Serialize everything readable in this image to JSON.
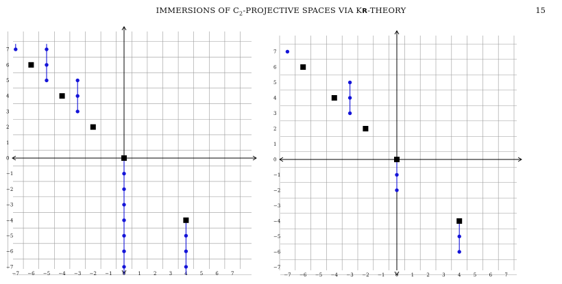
{
  "header": {
    "title_parts": [
      "IMMERSIONS OF C",
      "2",
      "-PROJECTIVE SPACES VIA K",
      "R",
      "-THEORY"
    ],
    "page_number": "15"
  },
  "chart_data": [
    {
      "type": "scatter",
      "xlim": [
        -7.5,
        7.5
      ],
      "ylim": [
        -7.5,
        7.5
      ],
      "x_ticks": [
        "−7",
        "−6",
        "−5",
        "−4",
        "−3",
        "−2",
        "−1",
        "0",
        "1",
        "2",
        "3",
        "4",
        "5",
        "6",
        "7"
      ],
      "y_ticks": [
        "7",
        "6",
        "5",
        "4",
        "3",
        "2",
        "1",
        "0",
        "−1",
        "−2",
        "−3",
        "−4",
        "−5",
        "−6",
        "−7"
      ],
      "grid": true,
      "squares": [
        [
          -6,
          6
        ],
        [
          -4,
          4
        ],
        [
          -2,
          2
        ],
        [
          0,
          0
        ],
        [
          4,
          -4
        ]
      ],
      "dots": [
        [
          -7,
          7
        ],
        [
          -5,
          7
        ],
        [
          -5,
          6
        ],
        [
          -5,
          5
        ],
        [
          -3,
          5
        ],
        [
          -3,
          4
        ],
        [
          -3,
          3
        ],
        [
          0,
          -1
        ],
        [
          0,
          -2
        ],
        [
          0,
          -3
        ],
        [
          0,
          -4
        ],
        [
          0,
          -5
        ],
        [
          0,
          -6
        ],
        [
          0,
          -7
        ],
        [
          4,
          -5
        ],
        [
          4,
          -6
        ],
        [
          4,
          -7
        ]
      ],
      "segments": [
        [
          -7,
          7.35,
          -7,
          7
        ],
        [
          -5,
          7.35,
          -5,
          5
        ],
        [
          -3,
          5,
          -3,
          3
        ],
        [
          0,
          0,
          0,
          -7.5
        ],
        [
          4,
          -4,
          4,
          -7.5
        ]
      ],
      "colors": {
        "dot": "#1414d8",
        "square": "#000000",
        "grid": "#9a9a9a"
      }
    },
    {
      "type": "scatter",
      "xlim": [
        -7.5,
        7.5
      ],
      "ylim": [
        -7.5,
        7.5
      ],
      "x_ticks": [
        "−7",
        "−6",
        "−5",
        "−4",
        "−3",
        "−2",
        "−1",
        "0",
        "1",
        "2",
        "3",
        "4",
        "5",
        "6",
        "7"
      ],
      "y_ticks": [
        "7",
        "6",
        "5",
        "4",
        "3",
        "2",
        "1",
        "0",
        "−1",
        "−2",
        "−3",
        "−4",
        "−5",
        "−6",
        "−7"
      ],
      "grid": true,
      "squares": [
        [
          -6,
          6
        ],
        [
          -4,
          4
        ],
        [
          -2,
          2
        ],
        [
          0,
          0
        ],
        [
          4,
          -4
        ]
      ],
      "dots": [
        [
          -7,
          7
        ],
        [
          -3,
          5
        ],
        [
          -3,
          4
        ],
        [
          -3,
          3
        ],
        [
          0,
          -1
        ],
        [
          0,
          -2
        ],
        [
          4,
          -5
        ],
        [
          4,
          -6
        ]
      ],
      "segments": [
        [
          -3,
          5,
          -3,
          3
        ],
        [
          0,
          0,
          0,
          -2
        ],
        [
          4,
          -4,
          4,
          -6
        ]
      ],
      "colors": {
        "dot": "#1414d8",
        "square": "#000000",
        "grid": "#9a9a9a"
      }
    }
  ]
}
